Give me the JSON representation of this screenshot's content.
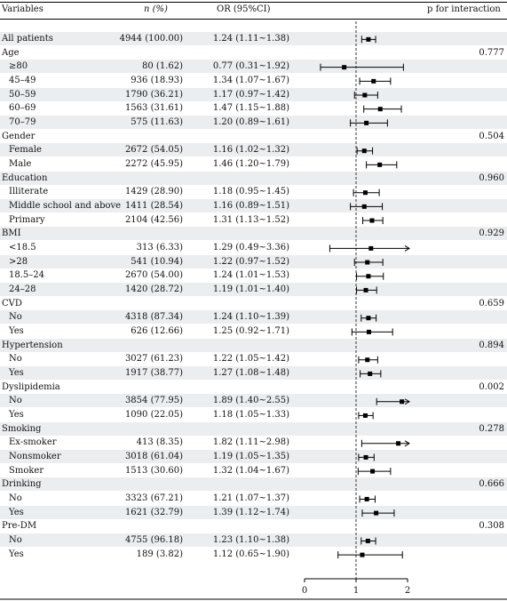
{
  "header": {
    "variables": "Variables",
    "n": "n (%)",
    "or": "OR (95%CI)",
    "p": "p for interaction"
  },
  "rows": [
    {
      "label": "All patients",
      "level": 0,
      "n": "4944 (100.00)",
      "or_text": "1.24 (1.11~1.38)",
      "p": ""
    },
    {
      "label": "Age",
      "level": 0,
      "n": "",
      "or_text": "",
      "p": "0.777"
    },
    {
      "label": "≥80",
      "level": 1,
      "n": "80 (1.62)",
      "or_text": "0.77 (0.31~1.92)",
      "p": ""
    },
    {
      "label": "45–49",
      "level": 1,
      "n": "936 (18.93)",
      "or_text": "1.34 (1.07~1.67)",
      "p": ""
    },
    {
      "label": "50–59",
      "level": 1,
      "n": "1790 (36.21)",
      "or_text": "1.17 (0.97~1.42)",
      "p": ""
    },
    {
      "label": "60–69",
      "level": 1,
      "n": "1563 (31.61)",
      "or_text": "1.47 (1.15~1.88)",
      "p": ""
    },
    {
      "label": "70–79",
      "level": 1,
      "n": "575 (11.63)",
      "or_text": "1.20 (0.89~1.61)",
      "p": ""
    },
    {
      "label": "Gender",
      "level": 0,
      "n": "",
      "or_text": "",
      "p": "0.504"
    },
    {
      "label": "Female",
      "level": 1,
      "n": "2672 (54.05)",
      "or_text": "1.16 (1.02~1.32)",
      "p": ""
    },
    {
      "label": "Male",
      "level": 1,
      "n": "2272 (45.95)",
      "or_text": "1.46 (1.20~1.79)",
      "p": ""
    },
    {
      "label": "Education",
      "level": 0,
      "n": "",
      "or_text": "",
      "p": "0.960"
    },
    {
      "label": "Illiterate",
      "level": 1,
      "n": "1429 (28.90)",
      "or_text": "1.18 (0.95~1.45)",
      "p": ""
    },
    {
      "label": "Middle school and above",
      "level": 1,
      "n": "1411 (28.54)",
      "or_text": "1.16 (0.89~1.51)",
      "p": ""
    },
    {
      "label": "Primary",
      "level": 1,
      "n": "2104 (42.56)",
      "or_text": "1.31 (1.13~1.52)",
      "p": ""
    },
    {
      "label": "BMI",
      "level": 0,
      "n": "",
      "or_text": "",
      "p": "0.929"
    },
    {
      "label": "<18.5",
      "level": 1,
      "n": "313 (6.33)",
      "or_text": "1.29 (0.49~3.36)",
      "p": ""
    },
    {
      "label": ">28",
      "level": 1,
      "n": "541 (10.94)",
      "or_text": "1.22 (0.97~1.52)",
      "p": ""
    },
    {
      "label": "18.5–24",
      "level": 1,
      "n": "2670 (54.00)",
      "or_text": "1.24 (1.01~1.53)",
      "p": ""
    },
    {
      "label": "24–28",
      "level": 1,
      "n": "1420 (28.72)",
      "or_text": "1.19 (1.01~1.40)",
      "p": ""
    },
    {
      "label": "CVD",
      "level": 0,
      "n": "",
      "or_text": "",
      "p": "0.659"
    },
    {
      "label": "No",
      "level": 1,
      "n": "4318 (87.34)",
      "or_text": "1.24 (1.10~1.39)",
      "p": ""
    },
    {
      "label": "Yes",
      "level": 1,
      "n": "626 (12.66)",
      "or_text": "1.25 (0.92~1.71)",
      "p": ""
    },
    {
      "label": "Hypertension",
      "level": 0,
      "n": "",
      "or_text": "",
      "p": "0.894"
    },
    {
      "label": "No",
      "level": 1,
      "n": "3027 (61.23)",
      "or_text": "1.22 (1.05~1.42)",
      "p": ""
    },
    {
      "label": "Yes",
      "level": 1,
      "n": "1917 (38.77)",
      "or_text": "1.27 (1.08~1.48)",
      "p": ""
    },
    {
      "label": "Dyslipidemia",
      "level": 0,
      "n": "",
      "or_text": "",
      "p": "0.002"
    },
    {
      "label": "No",
      "level": 1,
      "n": "3854 (77.95)",
      "or_text": "1.89 (1.40~2.55)",
      "p": ""
    },
    {
      "label": "Yes",
      "level": 1,
      "n": "1090 (22.05)",
      "or_text": "1.18 (1.05~1.33)",
      "p": ""
    },
    {
      "label": "Smoking",
      "level": 0,
      "n": "",
      "or_text": "",
      "p": "0.278"
    },
    {
      "label": "Ex-smoker",
      "level": 1,
      "n": "413 (8.35)",
      "or_text": "1.82 (1.11~2.98)",
      "p": ""
    },
    {
      "label": "Nonsmoker",
      "level": 1,
      "n": "3018 (61.04)",
      "or_text": "1.19 (1.05~1.35)",
      "p": ""
    },
    {
      "label": "Smoker",
      "level": 1,
      "n": "1513 (30.60)",
      "or_text": "1.32 (1.04~1.67)",
      "p": ""
    },
    {
      "label": "Drinking",
      "level": 0,
      "n": "",
      "or_text": "",
      "p": "0.666"
    },
    {
      "label": "No",
      "level": 1,
      "n": "3323 (67.21)",
      "or_text": "1.21 (1.07~1.37)",
      "p": ""
    },
    {
      "label": "Yes",
      "level": 1,
      "n": "1621 (32.79)",
      "or_text": "1.39 (1.12~1.74)",
      "p": ""
    },
    {
      "label": "Pre-DM",
      "level": 0,
      "n": "",
      "or_text": "",
      "p": "0.308"
    },
    {
      "label": "No",
      "level": 1,
      "n": "4755 (96.18)",
      "or_text": "1.23 (1.10~1.38)",
      "p": ""
    },
    {
      "label": "Yes",
      "level": 1,
      "n": "189 (3.82)",
      "or_text": "1.12 (0.65~1.90)",
      "p": ""
    }
  ],
  "chart_data": {
    "type": "forest",
    "reference_line": 1,
    "xlim": [
      0,
      2
    ],
    "xticks": [
      "0",
      "1",
      "2"
    ],
    "points": [
      {
        "or": 1.24,
        "lo": 1.11,
        "hi": 1.38
      },
      null,
      {
        "or": 0.77,
        "lo": 0.31,
        "hi": 1.92
      },
      {
        "or": 1.34,
        "lo": 1.07,
        "hi": 1.67
      },
      {
        "or": 1.17,
        "lo": 0.97,
        "hi": 1.42
      },
      {
        "or": 1.47,
        "lo": 1.15,
        "hi": 1.88
      },
      {
        "or": 1.2,
        "lo": 0.89,
        "hi": 1.61
      },
      null,
      {
        "or": 1.16,
        "lo": 1.02,
        "hi": 1.32
      },
      {
        "or": 1.46,
        "lo": 1.2,
        "hi": 1.79
      },
      null,
      {
        "or": 1.18,
        "lo": 0.95,
        "hi": 1.45
      },
      {
        "or": 1.16,
        "lo": 0.89,
        "hi": 1.51
      },
      {
        "or": 1.31,
        "lo": 1.13,
        "hi": 1.52
      },
      null,
      {
        "or": 1.29,
        "lo": 0.49,
        "hi": 3.36
      },
      {
        "or": 1.22,
        "lo": 0.97,
        "hi": 1.52
      },
      {
        "or": 1.24,
        "lo": 1.01,
        "hi": 1.53
      },
      {
        "or": 1.19,
        "lo": 1.01,
        "hi": 1.4
      },
      null,
      {
        "or": 1.24,
        "lo": 1.1,
        "hi": 1.39
      },
      {
        "or": 1.25,
        "lo": 0.92,
        "hi": 1.71
      },
      null,
      {
        "or": 1.22,
        "lo": 1.05,
        "hi": 1.42
      },
      {
        "or": 1.27,
        "lo": 1.08,
        "hi": 1.48
      },
      null,
      {
        "or": 1.89,
        "lo": 1.4,
        "hi": 2.55
      },
      {
        "or": 1.18,
        "lo": 1.05,
        "hi": 1.33
      },
      null,
      {
        "or": 1.82,
        "lo": 1.11,
        "hi": 2.98
      },
      {
        "or": 1.19,
        "lo": 1.05,
        "hi": 1.35
      },
      {
        "or": 1.32,
        "lo": 1.04,
        "hi": 1.67
      },
      null,
      {
        "or": 1.21,
        "lo": 1.07,
        "hi": 1.37
      },
      {
        "or": 1.39,
        "lo": 1.12,
        "hi": 1.74
      },
      null,
      {
        "or": 1.23,
        "lo": 1.1,
        "hi": 1.38
      },
      {
        "or": 1.12,
        "lo": 0.65,
        "hi": 1.9
      }
    ]
  }
}
